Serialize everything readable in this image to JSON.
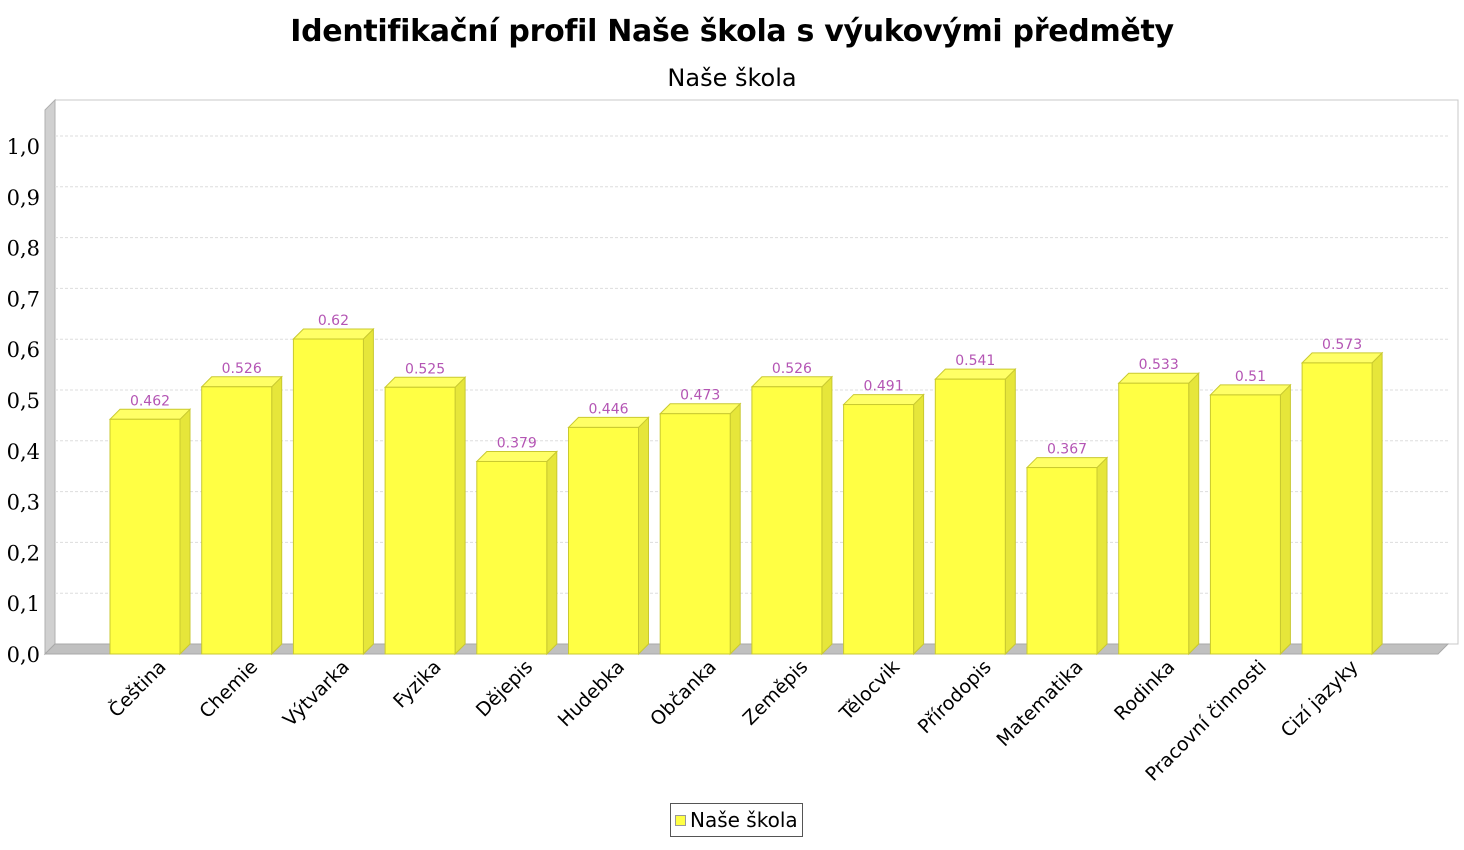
{
  "chart_data": {
    "type": "bar",
    "title": "Identifikační profil Naše škola s výukovými předměty",
    "subtitle": "Naše škola",
    "xlabel": "",
    "ylabel": "",
    "ylim": [
      0,
      1.0
    ],
    "y_ticks": [
      "0,0",
      "0,1",
      "0,2",
      "0,3",
      "0,4",
      "0,5",
      "0,6",
      "0,7",
      "0,8",
      "0,9",
      "1,0"
    ],
    "grid": true,
    "legend_position": "bottom",
    "categories": [
      "Čeština",
      "Chemie",
      "Výtvarka",
      "Fyzika",
      "Dějepis",
      "Hudebka",
      "Občanka",
      "Zeměpis",
      "Tělocvik",
      "Přírodopis",
      "Matematika",
      "Rodinka",
      "Pracovní činnosti",
      "Cizí jazyky"
    ],
    "series": [
      {
        "name": "Naše škola",
        "values": [
          0.462,
          0.526,
          0.62,
          0.525,
          0.379,
          0.446,
          0.473,
          0.526,
          0.491,
          0.541,
          0.367,
          0.533,
          0.51,
          0.573
        ],
        "data_labels": [
          "0.462",
          "0.526",
          "0.62",
          "0.525",
          "0.379",
          "0.446",
          "0.473",
          "0.526",
          "0.491",
          "0.541",
          "0.367",
          "0.533",
          "0.51",
          "0.573"
        ],
        "color": "#ffff44"
      }
    ],
    "label_color": "#b455b4"
  }
}
